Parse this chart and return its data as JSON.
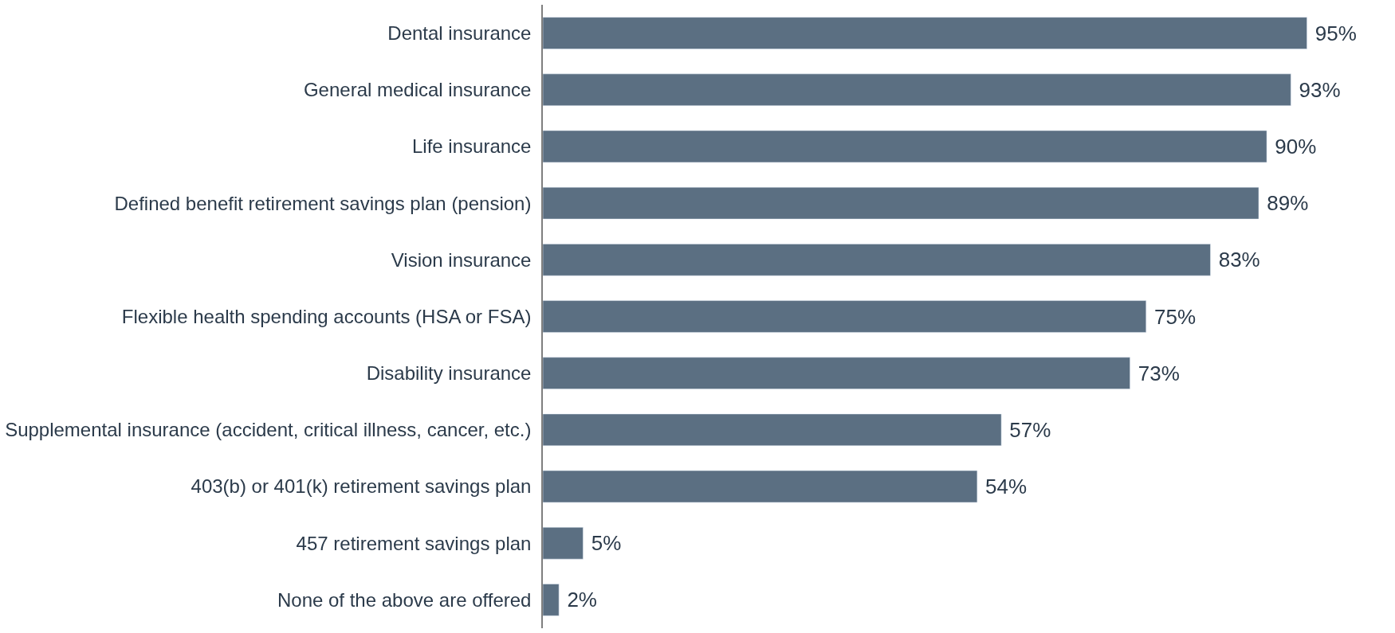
{
  "chart_data": {
    "type": "bar",
    "orientation": "horizontal",
    "categories": [
      "Dental insurance",
      "General medical insurance",
      "Life insurance",
      "Defined benefit retirement savings plan (pension)",
      "Vision insurance",
      "Flexible health spending accounts (HSA or FSA)",
      "Disability insurance",
      "Supplemental insurance (accident, critical illness, cancer, etc.)",
      "403(b) or 401(k) retirement savings plan",
      "457 retirement savings plan",
      "None of the above are offered"
    ],
    "values": [
      95,
      93,
      90,
      89,
      83,
      75,
      73,
      57,
      54,
      5,
      2
    ],
    "value_labels": [
      "95%",
      "93%",
      "90%",
      "89%",
      "83%",
      "75%",
      "73%",
      "57%",
      "54%",
      "5%",
      "2%"
    ],
    "color": "#5b6f82"
  }
}
